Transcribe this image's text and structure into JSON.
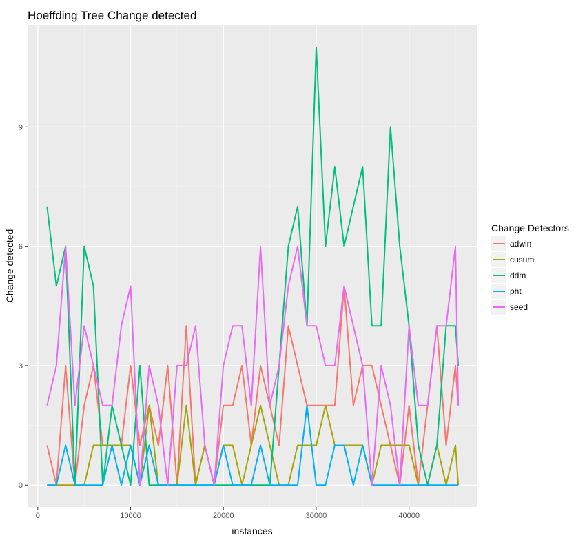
{
  "chart_data": {
    "type": "line",
    "title": "Hoeffding Tree Change detected",
    "xlabel": "instances",
    "ylabel": "Change detected",
    "xlim": [
      -1100,
      47300
    ],
    "ylim": [
      -0.55,
      11.55
    ],
    "x_ticks": [
      0,
      10000,
      20000,
      30000,
      40000
    ],
    "x_tick_labels": [
      "0",
      "10000",
      "20000",
      "30000",
      "40000"
    ],
    "y_ticks": [
      0,
      3,
      6,
      9
    ],
    "y_tick_labels": [
      "0",
      "3",
      "6",
      "9"
    ],
    "grid": true,
    "legend": {
      "title": "Change Detectors",
      "position": "right"
    },
    "x": [
      1000,
      2000,
      3000,
      4000,
      5000,
      6000,
      7000,
      8000,
      9000,
      10000,
      11000,
      12000,
      13000,
      14000,
      15000,
      16000,
      17000,
      18000,
      19000,
      20000,
      21000,
      22000,
      23000,
      24000,
      25000,
      26000,
      27000,
      28000,
      29000,
      30000,
      31000,
      32000,
      33000,
      34000,
      35000,
      36000,
      37000,
      38000,
      39000,
      40000,
      41000,
      42000,
      43000,
      44000,
      45000,
      45300
    ],
    "series": [
      {
        "name": "adwin",
        "color": "#F8766D",
        "values": [
          1,
          0,
          3,
          0,
          2,
          3,
          1,
          1,
          1,
          3,
          1,
          2,
          1,
          3,
          0,
          4,
          0,
          1,
          0,
          2,
          2,
          3,
          1,
          3,
          2,
          1,
          4,
          3,
          2,
          2,
          2,
          2,
          5,
          2,
          3,
          3,
          2,
          1,
          0,
          2,
          0,
          2,
          4,
          1,
          3,
          2
        ]
      },
      {
        "name": "cusum",
        "color": "#A3A500",
        "values": [
          0,
          0,
          0,
          0,
          0,
          1,
          1,
          1,
          1,
          1,
          0,
          2,
          0,
          0,
          0,
          2,
          0,
          1,
          0,
          1,
          1,
          0,
          1,
          2,
          1,
          0,
          0,
          1,
          1,
          1,
          2,
          1,
          1,
          1,
          1,
          0,
          1,
          1,
          1,
          1,
          0,
          0,
          1,
          0,
          1,
          0
        ]
      },
      {
        "name": "ddm",
        "color": "#00BF7D",
        "values": [
          7,
          5,
          6,
          0,
          6,
          5,
          0,
          2,
          1,
          0,
          3,
          0,
          0,
          0,
          0,
          0,
          0,
          0,
          0,
          0,
          0,
          0,
          0,
          0,
          0,
          3,
          6,
          7,
          4,
          11,
          6,
          8,
          6,
          7,
          8,
          4,
          4,
          9,
          6,
          4,
          1,
          0,
          1,
          4,
          4,
          3
        ]
      },
      {
        "name": "pht",
        "color": "#00B0F6",
        "values": [
          0,
          0,
          1,
          0,
          0,
          0,
          0,
          1,
          0,
          1,
          0,
          1,
          0,
          0,
          0,
          0,
          0,
          0,
          0,
          1,
          0,
          0,
          0,
          1,
          0,
          0,
          0,
          0,
          2,
          0,
          0,
          1,
          1,
          0,
          1,
          0,
          0,
          0,
          0,
          0,
          0,
          0,
          0,
          0,
          0,
          0
        ]
      },
      {
        "name": "seed",
        "color": "#E76BF3",
        "values": [
          2,
          3,
          6,
          2,
          4,
          3,
          2,
          2,
          4,
          5,
          0,
          3,
          2,
          0,
          3,
          3,
          4,
          1,
          0,
          3,
          4,
          4,
          2,
          6,
          2,
          3,
          5,
          6,
          4,
          4,
          3,
          3,
          5,
          4,
          3,
          0,
          3,
          2,
          0,
          4,
          2,
          2,
          4,
          4,
          6,
          2
        ]
      }
    ]
  }
}
